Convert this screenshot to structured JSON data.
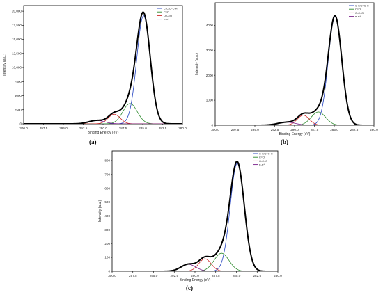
{
  "chart_data": [
    {
      "type": "line",
      "panel_label": "(a)",
      "xlabel": "Binding Energy (eV)",
      "ylabel": "Intensity (a.u.)",
      "xlim": [
        300,
        280
      ],
      "ylim": [
        0,
        21000
      ],
      "xticks": [
        "300.0",
        "297.5",
        "295.0",
        "292.5",
        "290.0",
        "287.5",
        "285.0",
        "282.5",
        "280.0"
      ],
      "yticks": [
        {
          "value": 0,
          "label": "0"
        },
        {
          "value": 2500,
          "label": "2500"
        },
        {
          "value": 5000,
          "label": "5000"
        },
        {
          "value": 7500,
          "label": "7500"
        },
        {
          "value": 10000,
          "label": "10,000"
        },
        {
          "value": 12500,
          "label": "12,500"
        },
        {
          "value": 15000,
          "label": "15,000"
        },
        {
          "value": 17500,
          "label": "17,500"
        },
        {
          "value": 20000,
          "label": "20,000"
        }
      ],
      "legend_position": "top-right",
      "legend": [
        {
          "label": "C-C/C=C-H",
          "color": "#1f3fbf"
        },
        {
          "label": "C=O",
          "color": "#2e8b2e"
        },
        {
          "label": "O-C=O",
          "color": "#cc2222"
        },
        {
          "label": "π-π*",
          "color": "#7a1f8a"
        }
      ],
      "components": [
        {
          "color": "#1f3fbf",
          "center": 284.9,
          "amplitude": 19200,
          "width": 0.85
        },
        {
          "color": "#2e8b2e",
          "center": 286.6,
          "amplitude": 3600,
          "width": 0.9
        },
        {
          "color": "#cc2222",
          "center": 288.6,
          "amplitude": 1700,
          "width": 0.75
        },
        {
          "color": "#7a1f8a",
          "center": 290.8,
          "amplitude": 600,
          "width": 1.0
        }
      ]
    },
    {
      "type": "line",
      "panel_label": "(b)",
      "xlabel": "Binding Energy (eV)",
      "ylabel": "Intensity (a.u.)",
      "xlim": [
        300,
        280
      ],
      "ylim": [
        0,
        4900
      ],
      "xticks": [
        "300.0",
        "297.5",
        "295.0",
        "292.5",
        "290.0",
        "287.5",
        "285.0",
        "282.5",
        "280.0"
      ],
      "yticks": [
        {
          "value": 0,
          "label": "0"
        },
        {
          "value": 1000,
          "label": "1000"
        },
        {
          "value": 2000,
          "label": "2000"
        },
        {
          "value": 3000,
          "label": "3000"
        },
        {
          "value": 4000,
          "label": "4000"
        }
      ],
      "legend_position": "top-right",
      "legend": [
        {
          "label": "C-C/C=C-H",
          "color": "#1f3fbf"
        },
        {
          "label": "C=O",
          "color": "#2e8b2e"
        },
        {
          "label": "O-C=O",
          "color": "#cc2222"
        },
        {
          "label": "π-π*",
          "color": "#7a1f8a"
        }
      ],
      "components": [
        {
          "color": "#1f3fbf",
          "center": 284.9,
          "amplitude": 4350,
          "width": 0.85
        },
        {
          "color": "#2e8b2e",
          "center": 287.0,
          "amplitude": 530,
          "width": 0.9
        },
        {
          "color": "#cc2222",
          "center": 288.9,
          "amplitude": 400,
          "width": 0.75
        },
        {
          "color": "#7a1f8a",
          "center": 291.0,
          "amplitude": 120,
          "width": 1.1
        }
      ]
    },
    {
      "type": "line",
      "panel_label": "(c)",
      "xlabel": "Binding Energy (eV)",
      "ylabel": "Intensity (a.u.)",
      "xlim": [
        300,
        280
      ],
      "ylim": [
        0,
        870
      ],
      "xticks": [
        "300.0",
        "297.5",
        "295.0",
        "292.5",
        "290.0",
        "287.5",
        "285.0",
        "282.5",
        "280.0"
      ],
      "yticks": [
        {
          "value": 0,
          "label": "0"
        },
        {
          "value": 100,
          "label": "100"
        },
        {
          "value": 200,
          "label": "200"
        },
        {
          "value": 300,
          "label": "300"
        },
        {
          "value": 400,
          "label": "400"
        },
        {
          "value": 500,
          "label": "500"
        },
        {
          "value": 600,
          "label": "600"
        },
        {
          "value": 700,
          "label": "700"
        },
        {
          "value": 800,
          "label": "800"
        }
      ],
      "legend_position": "top-right",
      "legend": [
        {
          "label": "C-C/C=C-H",
          "color": "#1f3fbf"
        },
        {
          "label": "C=O",
          "color": "#2e8b2e"
        },
        {
          "label": "O-C=O",
          "color": "#cc2222"
        },
        {
          "label": "π-π*",
          "color": "#7a1f8a"
        }
      ],
      "components": [
        {
          "color": "#1f3fbf",
          "center": 284.9,
          "amplitude": 780,
          "width": 0.85
        },
        {
          "color": "#2e8b2e",
          "center": 286.8,
          "amplitude": 130,
          "width": 0.9
        },
        {
          "color": "#cc2222",
          "center": 288.8,
          "amplitude": 90,
          "width": 0.75
        },
        {
          "color": "#7a1f8a",
          "center": 290.8,
          "amplitude": 50,
          "width": 0.9
        }
      ]
    }
  ]
}
